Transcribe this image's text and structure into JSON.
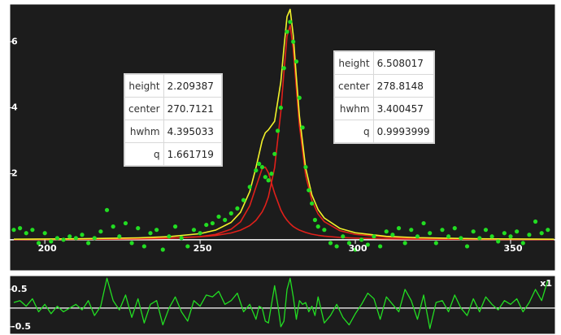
{
  "chart_data": [
    {
      "type": "scatter",
      "xlim": [
        188.7,
        364.4
      ],
      "ylim": [
        -0.94,
        7.14
      ],
      "xticks": [
        200,
        250,
        300,
        350
      ],
      "yticks": [
        2,
        4,
        6
      ],
      "points": {
        "color": "#22dd22",
        "x": [
          190,
          192,
          194,
          196,
          198,
          200,
          202,
          204,
          206,
          208,
          210,
          212,
          214,
          216,
          218,
          220,
          222,
          224,
          226,
          228,
          230,
          232,
          234,
          236,
          238,
          240,
          242,
          244,
          246,
          248,
          250,
          252,
          254,
          256,
          258,
          260,
          262,
          264,
          266,
          268,
          269,
          270,
          271,
          272,
          273,
          274,
          275,
          276,
          277,
          278,
          279,
          280,
          281,
          282,
          283,
          284,
          285,
          286,
          287,
          288,
          290,
          292,
          294,
          296,
          298,
          300,
          302,
          304,
          306,
          308,
          310,
          312,
          314,
          316,
          318,
          320,
          322,
          324,
          326,
          328,
          330,
          332,
          334,
          336,
          338,
          340,
          342,
          344,
          346,
          348,
          350,
          352,
          354,
          356,
          358,
          360,
          362
        ],
        "y": [
          0.3,
          0.35,
          0.2,
          0.3,
          -0.1,
          0.2,
          -0.05,
          0.05,
          0.0,
          0.1,
          0.05,
          0.15,
          -0.1,
          0.05,
          0.25,
          0.9,
          0.4,
          0.1,
          0.5,
          -0.1,
          0.35,
          -0.2,
          0.2,
          0.3,
          -0.3,
          0.1,
          0.4,
          0.05,
          -0.2,
          0.3,
          0.2,
          0.45,
          0.5,
          0.7,
          0.6,
          0.8,
          0.95,
          1.2,
          1.6,
          2.1,
          2.3,
          2.2,
          1.9,
          1.8,
          2.0,
          2.6,
          3.3,
          4.0,
          5.2,
          6.3,
          6.6,
          6.0,
          5.4,
          4.3,
          3.4,
          2.2,
          1.5,
          1.1,
          0.6,
          0.4,
          0.3,
          -0.1,
          -0.2,
          0.1,
          -0.1,
          -0.3,
          0.0,
          -0.15,
          0.1,
          -0.2,
          0.25,
          0.15,
          0.35,
          -0.1,
          0.3,
          0.1,
          0.5,
          0.2,
          -0.1,
          0.3,
          0.1,
          0.35,
          0.05,
          -0.2,
          0.25,
          0.05,
          0.3,
          0.1,
          -0.05,
          0.2,
          0.1,
          0.25,
          -0.1,
          0.15,
          0.55,
          0.2,
          0.3
        ]
      },
      "curves": [
        {
          "color": "#e0201a",
          "x": [
            190,
            210,
            230,
            240,
            250,
            255,
            260,
            263,
            266,
            268,
            270,
            271,
            272,
            274,
            276,
            277,
            278,
            279,
            280,
            281,
            282,
            284,
            286,
            288,
            290,
            295,
            300,
            310,
            320,
            340,
            364
          ],
          "values": [
            0.0066,
            0.0116,
            0.0255,
            0.044,
            0.095,
            0.161,
            0.32,
            0.54,
            1.03,
            1.6,
            2.16,
            2.2,
            2.03,
            1.41,
            0.9,
            0.725,
            0.59,
            0.485,
            0.4,
            0.341,
            0.291,
            0.22,
            0.169,
            0.134,
            0.109,
            0.07,
            0.049,
            0.027,
            0.0175,
            0.0089,
            0.0049
          ]
        },
        {
          "color": "#e0201a",
          "x": [
            190,
            210,
            230,
            240,
            250,
            255,
            260,
            263,
            266,
            268,
            270,
            271,
            272,
            274,
            276,
            277,
            278,
            279,
            280,
            281,
            282,
            284,
            286,
            288,
            290,
            295,
            300,
            310,
            320,
            340,
            364
          ],
          "values": [
            0.0095,
            0.0159,
            0.0315,
            0.0498,
            0.089,
            0.13,
            0.206,
            0.288,
            0.429,
            0.587,
            0.845,
            1.04,
            1.3,
            2.18,
            3.88,
            5.08,
            6.17,
            6.49,
            5.79,
            4.59,
            3.45,
            1.95,
            1.19,
            0.78,
            0.549,
            0.275,
            0.163,
            0.076,
            0.044,
            0.02,
            0.0104
          ]
        },
        {
          "color": "#f2f22a",
          "x": [
            190,
            210,
            230,
            240,
            250,
            255,
            260,
            263,
            266,
            268,
            270,
            271,
            272,
            274,
            276,
            277,
            278,
            279,
            280,
            281,
            282,
            284,
            286,
            288,
            290,
            295,
            300,
            310,
            320,
            340,
            364
          ],
          "values": [
            0.016,
            0.0275,
            0.058,
            0.094,
            0.184,
            0.291,
            0.526,
            0.828,
            1.459,
            2.187,
            3.005,
            3.24,
            3.33,
            3.59,
            4.78,
            5.81,
            6.76,
            6.98,
            6.19,
            4.93,
            3.74,
            2.17,
            1.36,
            0.914,
            0.658,
            0.345,
            0.212,
            0.103,
            0.062,
            0.029,
            0.015
          ]
        }
      ],
      "annotations": [
        {
          "rows": [
            {
              "label": "height",
              "value": 2.209387
            },
            {
              "label": "center",
              "value": 270.7121
            },
            {
              "label": "hwhm",
              "value": 4.395033
            },
            {
              "label": "q",
              "value": 1.661719
            }
          ]
        },
        {
          "rows": [
            {
              "label": "height",
              "value": 6.508017
            },
            {
              "label": "center",
              "value": 278.8148
            },
            {
              "label": "hwhm",
              "value": 3.400457
            },
            {
              "label": "q",
              "value": 0.9993999
            }
          ]
        }
      ]
    },
    {
      "type": "line",
      "label": "x1",
      "color": "#22dd22",
      "xlim": [
        188.7,
        364.4
      ],
      "ylim": [
        -0.7,
        0.87
      ],
      "yticks": [
        -0.5,
        0.5
      ],
      "x": [
        190,
        192,
        194,
        196,
        198,
        200,
        202,
        204,
        206,
        208,
        210,
        212,
        214,
        216,
        218,
        220,
        222,
        224,
        226,
        228,
        230,
        232,
        234,
        236,
        238,
        240,
        242,
        244,
        246,
        248,
        250,
        252,
        254,
        256,
        258,
        260,
        262,
        264,
        266,
        268,
        269,
        270,
        271,
        272,
        273,
        274,
        275,
        276,
        277,
        278,
        279,
        280,
        281,
        282,
        283,
        284,
        285,
        286,
        287,
        288,
        290,
        292,
        294,
        296,
        298,
        300,
        302,
        304,
        306,
        308,
        310,
        312,
        314,
        316,
        318,
        320,
        322,
        324,
        326,
        328,
        330,
        332,
        334,
        336,
        338,
        340,
        342,
        344,
        346,
        348,
        350,
        352,
        354,
        356,
        358,
        360,
        362
      ],
      "values": [
        0.15,
        0.2,
        0.05,
        0.25,
        -0.1,
        0.1,
        -0.15,
        0.05,
        -0.1,
        0.0,
        0.1,
        -0.05,
        0.2,
        -0.2,
        0.05,
        0.8,
        0.2,
        -0.05,
        0.35,
        -0.25,
        0.25,
        -0.4,
        0.1,
        0.2,
        -0.45,
        0.0,
        0.3,
        -0.1,
        -0.35,
        0.2,
        0.05,
        0.35,
        0.3,
        0.45,
        0.1,
        0.2,
        0.4,
        -0.1,
        0.1,
        -0.3,
        0.05,
        0.0,
        -0.35,
        -0.4,
        0.1,
        0.6,
        0.1,
        -0.5,
        -0.35,
        0.5,
        0.8,
        0.3,
        -0.3,
        0.2,
        0.1,
        0.15,
        -0.1,
        0.05,
        -0.2,
        0.3,
        -0.4,
        -0.2,
        0.1,
        -0.25,
        -0.45,
        -0.15,
        0.1,
        0.4,
        0.25,
        -0.3,
        0.3,
        0.1,
        -0.1,
        0.5,
        0.2,
        -0.3,
        0.35,
        -0.55,
        0.15,
        0.2,
        -0.1,
        0.35,
        0.0,
        -0.2,
        0.25,
        -0.1,
        0.3,
        0.1,
        -0.05,
        0.2,
        0.1,
        0.25,
        -0.1,
        0.15,
        0.5,
        0.2,
        0.75
      ]
    }
  ]
}
